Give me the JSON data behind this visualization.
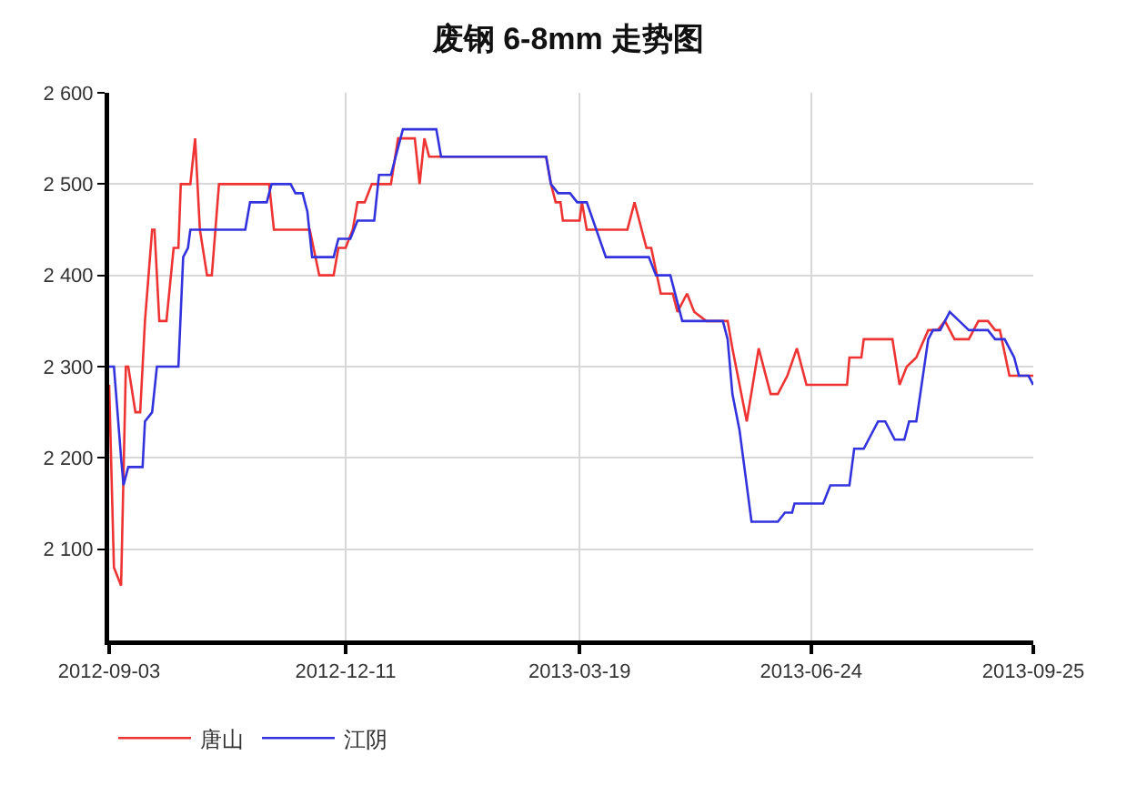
{
  "chart_data": {
    "type": "line",
    "title": "废钢 6-8mm 走势图",
    "xlim": [
      "2012-09-03",
      "2013-09-25"
    ],
    "xticks": [
      "2012-09-03",
      "2012-12-11",
      "2013-03-19",
      "2013-06-24",
      "2013-09-25"
    ],
    "ylim": [
      2000,
      2600
    ],
    "yticks": [
      {
        "value": 2100,
        "label": "2 100"
      },
      {
        "value": 2200,
        "label": "2 200"
      },
      {
        "value": 2300,
        "label": "2 300"
      },
      {
        "value": 2400,
        "label": "2 400"
      },
      {
        "value": 2500,
        "label": "2 500"
      },
      {
        "value": 2600,
        "label": "2 600"
      }
    ],
    "grid": true,
    "legend": "bottom left",
    "marker": "none",
    "line_style": "solid",
    "series": [
      {
        "name": "唐山",
        "color": "#ee3333",
        "x": [
          "2012-09-03",
          "2012-09-05",
          "2012-09-08",
          "2012-09-10",
          "2012-09-11",
          "2012-09-14",
          "2012-09-16",
          "2012-09-18",
          "2012-09-21",
          "2012-09-22",
          "2012-09-24",
          "2012-09-27",
          "2012-09-30",
          "2012-10-02",
          "2012-10-03",
          "2012-10-07",
          "2012-10-09",
          "2012-10-11",
          "2012-10-14",
          "2012-10-16",
          "2012-10-19",
          "2012-11-09",
          "2012-11-11",
          "2012-11-26",
          "2012-11-30",
          "2012-12-06",
          "2012-12-08",
          "2012-12-11",
          "2012-12-14",
          "2012-12-16",
          "2012-12-19",
          "2012-12-22",
          "2012-12-30",
          "2013-01-02",
          "2013-01-09",
          "2013-01-11",
          "2013-01-13",
          "2013-01-15",
          "2013-03-05",
          "2013-03-07",
          "2013-03-09",
          "2013-03-11",
          "2013-03-12",
          "2013-03-19",
          "2013-03-20",
          "2013-03-22",
          "2013-04-08",
          "2013-04-11",
          "2013-04-14",
          "2013-04-16",
          "2013-04-18",
          "2013-04-22",
          "2013-04-27",
          "2013-04-29",
          "2013-05-03",
          "2013-05-06",
          "2013-05-11",
          "2013-05-20",
          "2013-05-22",
          "2013-05-28",
          "2013-06-02",
          "2013-06-07",
          "2013-06-10",
          "2013-06-14",
          "2013-06-18",
          "2013-06-22",
          "2013-07-09",
          "2013-07-10",
          "2013-07-15",
          "2013-07-16",
          "2013-07-28",
          "2013-07-31",
          "2013-08-03",
          "2013-08-07",
          "2013-08-12",
          "2013-08-16",
          "2013-08-19",
          "2013-08-23",
          "2013-08-29",
          "2013-09-02",
          "2013-09-06",
          "2013-09-09",
          "2013-09-11",
          "2013-09-15",
          "2013-09-25"
        ],
        "values": [
          2280,
          2080,
          2060,
          2300,
          2300,
          2250,
          2250,
          2350,
          2450,
          2450,
          2350,
          2350,
          2430,
          2430,
          2500,
          2500,
          2550,
          2450,
          2400,
          2400,
          2500,
          2500,
          2450,
          2450,
          2400,
          2400,
          2430,
          2430,
          2450,
          2480,
          2480,
          2500,
          2500,
          2550,
          2550,
          2500,
          2550,
          2530,
          2530,
          2500,
          2480,
          2480,
          2460,
          2460,
          2480,
          2450,
          2450,
          2480,
          2450,
          2430,
          2430,
          2380,
          2380,
          2360,
          2380,
          2360,
          2350,
          2350,
          2320,
          2240,
          2320,
          2270,
          2270,
          2290,
          2320,
          2280,
          2280,
          2310,
          2310,
          2330,
          2330,
          2280,
          2300,
          2310,
          2340,
          2340,
          2350,
          2330,
          2330,
          2350,
          2350,
          2340,
          2340,
          2290,
          2290
        ]
      },
      {
        "name": "江阴",
        "color": "#3333dd",
        "x": [
          "2012-09-03",
          "2012-09-05",
          "2012-09-08",
          "2012-09-09",
          "2012-09-11",
          "2012-09-17",
          "2012-09-18",
          "2012-09-21",
          "2012-09-23",
          "2012-10-02",
          "2012-10-04",
          "2012-10-06",
          "2012-10-07",
          "2012-10-30",
          "2012-11-01",
          "2012-11-08",
          "2012-11-10",
          "2012-11-18",
          "2012-11-20",
          "2012-11-23",
          "2012-11-25",
          "2012-11-27",
          "2012-12-06",
          "2012-12-08",
          "2012-12-13",
          "2012-12-16",
          "2012-12-23",
          "2012-12-25",
          "2012-12-30",
          "2013-01-04",
          "2013-01-18",
          "2013-01-20",
          "2013-03-05",
          "2013-03-07",
          "2013-03-10",
          "2013-03-15",
          "2013-03-18",
          "2013-03-22",
          "2013-03-26",
          "2013-03-30",
          "2013-04-17",
          "2013-04-20",
          "2013-04-26",
          "2013-05-01",
          "2013-05-18",
          "2013-05-20",
          "2013-05-22",
          "2013-05-25",
          "2013-05-30",
          "2013-06-10",
          "2013-06-13",
          "2013-06-16",
          "2013-06-17",
          "2013-06-29",
          "2013-07-02",
          "2013-07-10",
          "2013-07-12",
          "2013-07-16",
          "2013-07-22",
          "2013-07-25",
          "2013-07-29",
          "2013-08-02",
          "2013-08-04",
          "2013-08-07",
          "2013-08-12",
          "2013-08-14",
          "2013-08-17",
          "2013-08-21",
          "2013-08-25",
          "2013-08-29",
          "2013-09-06",
          "2013-09-09",
          "2013-09-13",
          "2013-09-15",
          "2013-09-17",
          "2013-09-19",
          "2013-09-23",
          "2013-09-25"
        ],
        "values": [
          2300,
          2300,
          2200,
          2170,
          2190,
          2190,
          2240,
          2250,
          2300,
          2300,
          2420,
          2430,
          2450,
          2450,
          2480,
          2480,
          2500,
          2500,
          2490,
          2490,
          2470,
          2420,
          2420,
          2440,
          2440,
          2460,
          2460,
          2510,
          2510,
          2560,
          2560,
          2530,
          2530,
          2500,
          2490,
          2490,
          2480,
          2480,
          2450,
          2420,
          2420,
          2400,
          2400,
          2350,
          2350,
          2330,
          2270,
          2230,
          2130,
          2130,
          2140,
          2140,
          2150,
          2150,
          2170,
          2170,
          2210,
          2210,
          2240,
          2240,
          2220,
          2220,
          2240,
          2240,
          2330,
          2340,
          2340,
          2360,
          2350,
          2340,
          2340,
          2330,
          2330,
          2320,
          2310,
          2290,
          2290,
          2280
        ]
      }
    ]
  }
}
